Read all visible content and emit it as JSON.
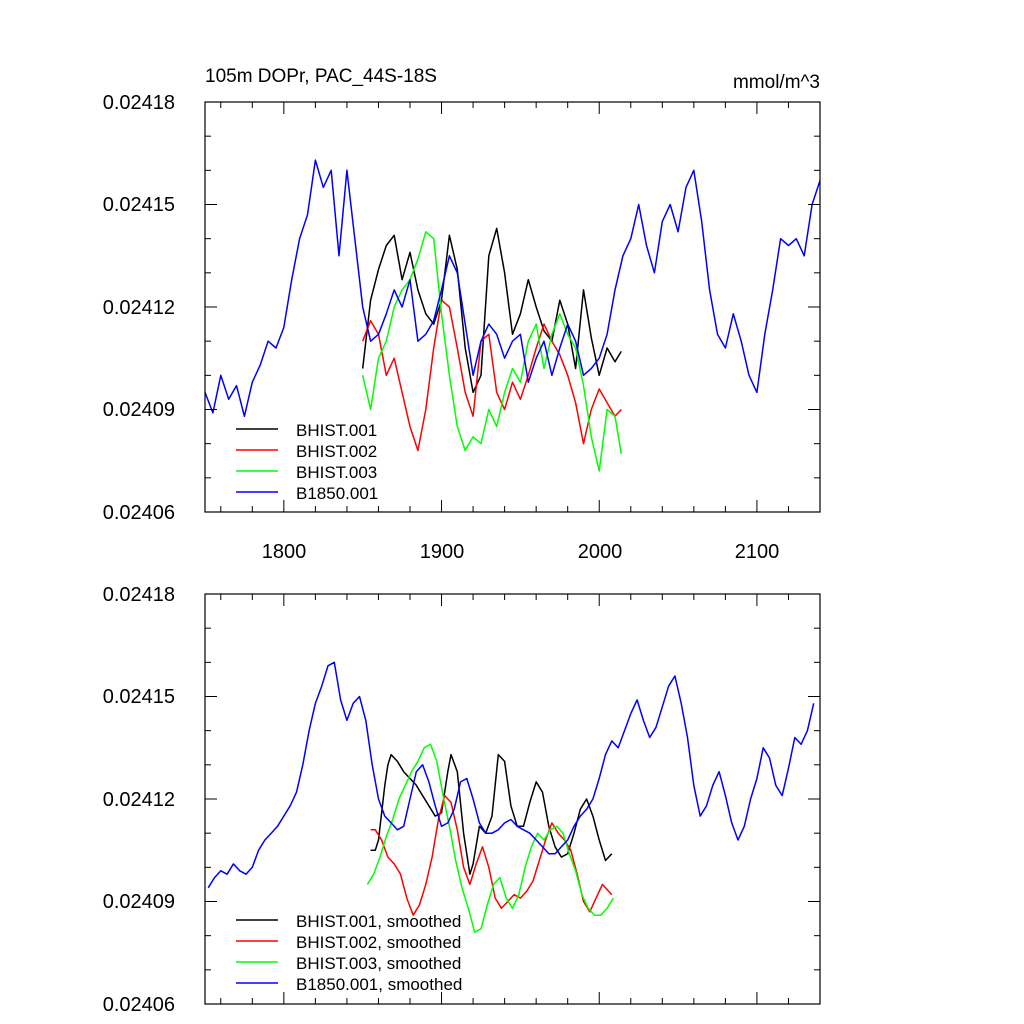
{
  "chart_data": [
    {
      "type": "line",
      "title": "105m DOPr, PAC_44S-18S",
      "units": "mmol/m^3",
      "xlim": [
        1750,
        2140
      ],
      "ylim": [
        0.02406,
        0.02418
      ],
      "x_ticks": [
        1800,
        1900,
        2000,
        2100
      ],
      "y_ticks": [
        "0.02406",
        "0.02409",
        "0.02412",
        "0.02415",
        "0.02418"
      ],
      "legend_position": "bottom-left",
      "series": [
        {
          "name": "BHIST.001",
          "color": "#000000",
          "x": [
            1850,
            1855,
            1860,
            1865,
            1870,
            1875,
            1880,
            1885,
            1890,
            1895,
            1900,
            1905,
            1910,
            1915,
            1920,
            1925,
            1930,
            1935,
            1940,
            1945,
            1950,
            1955,
            1960,
            1965,
            1970,
            1975,
            1980,
            1985,
            1990,
            1995,
            2000,
            2005,
            2010,
            2014
          ],
          "y": [
            0.024102,
            0.024122,
            0.024131,
            0.024138,
            0.024141,
            0.024128,
            0.024136,
            0.024125,
            0.024118,
            0.024115,
            0.024122,
            0.024141,
            0.024131,
            0.024108,
            0.024095,
            0.0241,
            0.024135,
            0.024143,
            0.02413,
            0.024112,
            0.024118,
            0.024128,
            0.02412,
            0.024113,
            0.02411,
            0.024122,
            0.024115,
            0.024102,
            0.024125,
            0.024111,
            0.0241,
            0.024108,
            0.024104,
            0.024107
          ]
        },
        {
          "name": "BHIST.002",
          "color": "#ff0000",
          "x": [
            1850,
            1855,
            1860,
            1865,
            1870,
            1875,
            1880,
            1885,
            1890,
            1895,
            1900,
            1905,
            1910,
            1915,
            1920,
            1925,
            1930,
            1935,
            1940,
            1945,
            1950,
            1955,
            1960,
            1965,
            1970,
            1975,
            1980,
            1985,
            1990,
            1995,
            2000,
            2005,
            2010,
            2014
          ],
          "y": [
            0.02411,
            0.024116,
            0.024112,
            0.0241,
            0.024105,
            0.024095,
            0.024085,
            0.024078,
            0.02409,
            0.024108,
            0.024122,
            0.02412,
            0.024108,
            0.024095,
            0.024088,
            0.02411,
            0.024112,
            0.024095,
            0.02409,
            0.024098,
            0.024093,
            0.0241,
            0.024108,
            0.024115,
            0.02411,
            0.024106,
            0.0241,
            0.024092,
            0.02408,
            0.02409,
            0.024096,
            0.024092,
            0.024088,
            0.02409
          ]
        },
        {
          "name": "BHIST.003",
          "color": "#00ff00",
          "x": [
            1850,
            1855,
            1860,
            1865,
            1870,
            1875,
            1880,
            1885,
            1890,
            1895,
            1900,
            1905,
            1910,
            1915,
            1920,
            1925,
            1930,
            1935,
            1940,
            1945,
            1950,
            1955,
            1960,
            1965,
            1970,
            1975,
            1980,
            1985,
            1990,
            1995,
            2000,
            2005,
            2010,
            2014
          ],
          "y": [
            0.0241,
            0.02409,
            0.024105,
            0.02411,
            0.02412,
            0.024125,
            0.024128,
            0.024134,
            0.024142,
            0.02414,
            0.024118,
            0.0241,
            0.024085,
            0.024078,
            0.024082,
            0.02408,
            0.02409,
            0.024085,
            0.024095,
            0.024102,
            0.024098,
            0.02411,
            0.024115,
            0.024102,
            0.024112,
            0.024118,
            0.024112,
            0.024108,
            0.024097,
            0.024082,
            0.024072,
            0.02409,
            0.024088,
            0.024077
          ]
        },
        {
          "name": "B1850.001",
          "color": "#0000ff",
          "x": [
            1750,
            1755,
            1760,
            1765,
            1770,
            1775,
            1780,
            1785,
            1790,
            1795,
            1800,
            1805,
            1810,
            1815,
            1820,
            1825,
            1830,
            1835,
            1840,
            1845,
            1850,
            1855,
            1860,
            1865,
            1870,
            1875,
            1880,
            1885,
            1890,
            1895,
            1900,
            1905,
            1910,
            1915,
            1920,
            1925,
            1930,
            1935,
            1940,
            1945,
            1950,
            1955,
            1960,
            1965,
            1970,
            1975,
            1980,
            1985,
            1990,
            1995,
            2000,
            2005,
            2010,
            2015,
            2020,
            2025,
            2030,
            2035,
            2040,
            2045,
            2050,
            2055,
            2060,
            2065,
            2070,
            2075,
            2080,
            2085,
            2090,
            2095,
            2100,
            2105,
            2110,
            2115,
            2120,
            2125,
            2130,
            2135,
            2140
          ],
          "y": [
            0.024095,
            0.024089,
            0.0241,
            0.024093,
            0.024097,
            0.024088,
            0.024098,
            0.024103,
            0.02411,
            0.024108,
            0.024114,
            0.024128,
            0.02414,
            0.024147,
            0.024163,
            0.024155,
            0.02416,
            0.024135,
            0.02416,
            0.02414,
            0.02412,
            0.02411,
            0.024112,
            0.024118,
            0.024125,
            0.02412,
            0.024128,
            0.02411,
            0.024112,
            0.024116,
            0.024125,
            0.024135,
            0.02413,
            0.024115,
            0.0241,
            0.02411,
            0.024115,
            0.024112,
            0.024105,
            0.02411,
            0.024112,
            0.024098,
            0.024105,
            0.02411,
            0.0241,
            0.024108,
            0.024115,
            0.02411,
            0.0241,
            0.024102,
            0.024105,
            0.024112,
            0.024125,
            0.024135,
            0.02414,
            0.02415,
            0.024138,
            0.02413,
            0.024145,
            0.02415,
            0.024142,
            0.024155,
            0.02416,
            0.024145,
            0.024125,
            0.024112,
            0.024108,
            0.024118,
            0.02411,
            0.0241,
            0.024095,
            0.024112,
            0.024125,
            0.02414,
            0.024138,
            0.02414,
            0.024135,
            0.02415,
            0.024157
          ]
        }
      ],
      "legend": [
        "BHIST.001",
        "BHIST.002",
        "BHIST.003",
        "B1850.001"
      ]
    },
    {
      "type": "line",
      "xlim": [
        1750,
        2140
      ],
      "ylim": [
        0.02406,
        0.02418
      ],
      "y_ticks": [
        "0.02406",
        "0.02409",
        "0.02412",
        "0.02415",
        "0.02418"
      ],
      "legend_position": "bottom-left",
      "series": [
        {
          "name": "BHIST.001, smoothed",
          "color": "#000000",
          "x": [
            1855,
            1858,
            1860,
            1864,
            1866,
            1868,
            1872,
            1876,
            1880,
            1884,
            1888,
            1892,
            1896,
            1900,
            1904,
            1906,
            1910,
            1914,
            1918,
            1920,
            1924,
            1928,
            1932,
            1936,
            1940,
            1944,
            1948,
            1952,
            1956,
            1960,
            1964,
            1968,
            1972,
            1976,
            1980,
            1984,
            1988,
            1992,
            1996,
            2000,
            2004,
            2008
          ],
          "y": [
            0.024105,
            0.024105,
            0.024108,
            0.024124,
            0.02413,
            0.024133,
            0.024131,
            0.024128,
            0.024126,
            0.024124,
            0.024121,
            0.024118,
            0.024115,
            0.024116,
            0.024128,
            0.024133,
            0.024128,
            0.02411,
            0.024098,
            0.024101,
            0.024112,
            0.02411,
            0.024115,
            0.024133,
            0.024131,
            0.024118,
            0.024112,
            0.024112,
            0.024119,
            0.024125,
            0.024122,
            0.024112,
            0.024106,
            0.024103,
            0.024104,
            0.02411,
            0.024117,
            0.02412,
            0.024115,
            0.024108,
            0.024102,
            0.024104
          ]
        },
        {
          "name": "BHIST.002, smoothed",
          "color": "#ff0000",
          "x": [
            1855,
            1858,
            1862,
            1866,
            1870,
            1874,
            1878,
            1882,
            1886,
            1890,
            1894,
            1898,
            1902,
            1906,
            1910,
            1914,
            1918,
            1922,
            1926,
            1930,
            1934,
            1938,
            1942,
            1946,
            1950,
            1954,
            1958,
            1962,
            1966,
            1970,
            1974,
            1978,
            1982,
            1986,
            1990,
            1994,
            1998,
            2002,
            2006,
            2008
          ],
          "y": [
            0.024111,
            0.024111,
            0.024108,
            0.024103,
            0.024101,
            0.024098,
            0.024091,
            0.024086,
            0.024089,
            0.024095,
            0.024103,
            0.024114,
            0.024121,
            0.024119,
            0.024111,
            0.0241,
            0.024095,
            0.024101,
            0.024106,
            0.0241,
            0.024091,
            0.024088,
            0.02409,
            0.024092,
            0.024091,
            0.024093,
            0.024096,
            0.024102,
            0.024108,
            0.024113,
            0.02411,
            0.024108,
            0.024105,
            0.024098,
            0.02409,
            0.024087,
            0.024091,
            0.024095,
            0.024093,
            0.024092
          ]
        },
        {
          "name": "BHIST.003, smoothed",
          "color": "#00ff00",
          "x": [
            1853,
            1857,
            1861,
            1865,
            1869,
            1873,
            1877,
            1881,
            1885,
            1889,
            1893,
            1897,
            1901,
            1905,
            1909,
            1913,
            1917,
            1921,
            1925,
            1929,
            1933,
            1937,
            1941,
            1945,
            1949,
            1953,
            1957,
            1961,
            1965,
            1969,
            1973,
            1977,
            1981,
            1985,
            1989,
            1993,
            1997,
            2001,
            2005,
            2009
          ],
          "y": [
            0.024095,
            0.024098,
            0.024103,
            0.024109,
            0.024114,
            0.02412,
            0.024124,
            0.024128,
            0.024131,
            0.024135,
            0.024136,
            0.024131,
            0.024121,
            0.024112,
            0.024102,
            0.024094,
            0.024088,
            0.024081,
            0.024082,
            0.024089,
            0.024095,
            0.024097,
            0.024091,
            0.024088,
            0.024092,
            0.0241,
            0.024106,
            0.02411,
            0.024108,
            0.024111,
            0.024112,
            0.02411,
            0.024104,
            0.024099,
            0.024092,
            0.024088,
            0.024086,
            0.024086,
            0.024088,
            0.024091
          ]
        },
        {
          "name": "B1850.001, smoothed",
          "color": "#0000ff",
          "x": [
            1752,
            1756,
            1760,
            1764,
            1768,
            1772,
            1776,
            1780,
            1784,
            1788,
            1792,
            1796,
            1800,
            1804,
            1808,
            1812,
            1816,
            1820,
            1824,
            1828,
            1832,
            1836,
            1840,
            1844,
            1848,
            1852,
            1856,
            1860,
            1864,
            1868,
            1872,
            1876,
            1880,
            1884,
            1888,
            1892,
            1896,
            1900,
            1904,
            1908,
            1912,
            1916,
            1920,
            1924,
            1928,
            1932,
            1936,
            1940,
            1944,
            1948,
            1952,
            1956,
            1960,
            1964,
            1968,
            1972,
            1976,
            1980,
            1984,
            1988,
            1992,
            1996,
            2000,
            2004,
            2008,
            2012,
            2016,
            2020,
            2024,
            2028,
            2032,
            2036,
            2040,
            2044,
            2048,
            2052,
            2056,
            2060,
            2064,
            2068,
            2072,
            2076,
            2080,
            2084,
            2088,
            2092,
            2096,
            2100,
            2104,
            2108,
            2112,
            2116,
            2120,
            2124,
            2128,
            2132,
            2136
          ],
          "y": [
            0.024094,
            0.024097,
            0.024099,
            0.024098,
            0.024101,
            0.024099,
            0.024098,
            0.0241,
            0.024105,
            0.024108,
            0.02411,
            0.024112,
            0.024115,
            0.024118,
            0.024122,
            0.02413,
            0.02414,
            0.024148,
            0.024153,
            0.024159,
            0.02416,
            0.024149,
            0.024143,
            0.024148,
            0.02415,
            0.024143,
            0.02413,
            0.02412,
            0.024115,
            0.024113,
            0.024111,
            0.024112,
            0.02412,
            0.024128,
            0.02413,
            0.024125,
            0.024118,
            0.024112,
            0.024113,
            0.024117,
            0.024125,
            0.024126,
            0.02412,
            0.024113,
            0.02411,
            0.02411,
            0.024111,
            0.024113,
            0.024114,
            0.024112,
            0.024111,
            0.02411,
            0.024108,
            0.024106,
            0.024104,
            0.024104,
            0.024106,
            0.024108,
            0.024112,
            0.024115,
            0.024117,
            0.02412,
            0.024126,
            0.024133,
            0.024137,
            0.024135,
            0.02414,
            0.024145,
            0.024149,
            0.024143,
            0.024138,
            0.024141,
            0.024147,
            0.024153,
            0.024156,
            0.024148,
            0.024138,
            0.024124,
            0.024115,
            0.024118,
            0.024124,
            0.024128,
            0.024121,
            0.024113,
            0.024108,
            0.024112,
            0.02412,
            0.024126,
            0.024135,
            0.024132,
            0.024124,
            0.024121,
            0.024129,
            0.024138,
            0.024136,
            0.02414,
            0.024148
          ]
        }
      ],
      "legend": [
        "BHIST.001, smoothed",
        "BHIST.002, smoothed",
        "BHIST.003, smoothed",
        "B1850.001, smoothed"
      ]
    }
  ]
}
